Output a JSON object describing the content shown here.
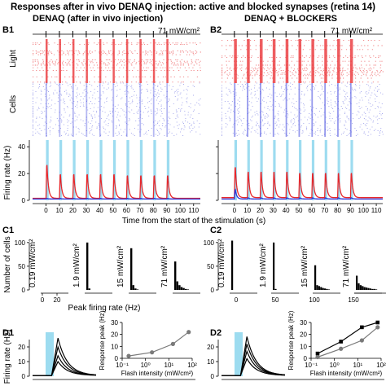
{
  "figure": {
    "title": "Responses after in vivo DENAQ injection: active and blocked synapses (retina 14)",
    "left_heading": "DENAQ (after in vivo injection)",
    "right_heading": "DENAQ + BLOCKERS",
    "row_labels": {
      "light": "Light",
      "cells": "Cells"
    },
    "panels": {
      "b1": "B1",
      "b2": "B2",
      "c1": "C1",
      "c2": "C2",
      "d1": "D1",
      "d2": "D2"
    },
    "intensity_label": "71 mW/cm²",
    "colors": {
      "red": "#e8272b",
      "red_light": "#f07a7c",
      "blue": "#2b33d9",
      "blue_light": "#8a8ee8",
      "cyan": "#9ddcf0",
      "grey": "#7a7a7a"
    }
  },
  "chart_data": [
    {
      "id": "b1-rate",
      "type": "line",
      "ylabel": "Firing rate (Hz)",
      "xlabel": "Time from the start of the stimulation (s)",
      "x_ticks": [
        0,
        10,
        20,
        30,
        40,
        50,
        60,
        70,
        80,
        90,
        100,
        110
      ],
      "y_ticks": [
        0,
        20,
        40
      ],
      "xlim": [
        -10,
        115
      ],
      "ylim": [
        0,
        45
      ],
      "stimulus_onsets": [
        0,
        10,
        20,
        30,
        40,
        50,
        60,
        70,
        80,
        90
      ],
      "series": [
        {
          "color": "red",
          "peaks": [
            30,
            22,
            22,
            22,
            22,
            22,
            21,
            21,
            21,
            21
          ],
          "baseline": 1.5
        },
        {
          "color": "blue",
          "peaks": [
            1.5,
            1.5,
            1.5,
            1.5,
            1.5,
            1.5,
            1.5,
            1.5,
            1.5,
            1.5
          ],
          "baseline": 1
        }
      ]
    },
    {
      "id": "b2-rate",
      "type": "line",
      "x_ticks": [
        0,
        10,
        20,
        30,
        40,
        50,
        60,
        70,
        80,
        90,
        100,
        110
      ],
      "y_ticks": [
        0,
        20,
        40
      ],
      "xlim": [
        -10,
        115
      ],
      "ylim": [
        0,
        45
      ],
      "stimulus_onsets": [
        0,
        10,
        20,
        30,
        40,
        50,
        60,
        70,
        80,
        90
      ],
      "series": [
        {
          "color": "red",
          "peaks": [
            28,
            24,
            24,
            24,
            24,
            23,
            23,
            23,
            23,
            23
          ],
          "baseline": 2
        },
        {
          "color": "blue",
          "peaks": [
            9,
            2,
            2,
            2,
            2,
            2,
            2,
            2,
            2,
            2
          ],
          "baseline": 1
        }
      ]
    },
    {
      "id": "c1",
      "type": "bar",
      "ylabel": "Number of cells",
      "xlabel": "Peak firing rate (Hz)",
      "y_ticks": [
        0,
        50,
        100
      ],
      "ylim": [
        0,
        110
      ],
      "subplots": [
        {
          "intensity": "0.19 mW/cm²",
          "x_ticks": [
            0,
            20
          ],
          "xlim": [
            0,
            30
          ],
          "values": [
            0,
            0,
            0,
            0,
            0,
            0
          ]
        },
        {
          "intensity": "1.9 mW/cm²",
          "x_ticks": [],
          "xlim": [
            0,
            30
          ],
          "values": [
            100,
            3,
            0,
            0,
            0,
            0
          ]
        },
        {
          "intensity": "15 mW/cm²",
          "x_ticks": [],
          "xlim": [
            0,
            30
          ],
          "values": [
            88,
            10,
            3,
            1,
            0,
            0
          ]
        },
        {
          "intensity": "71 mW/cm²",
          "x_ticks": [],
          "xlim": [
            0,
            30
          ],
          "values": [
            60,
            18,
            10,
            6,
            4,
            2,
            1
          ]
        }
      ]
    },
    {
      "id": "c2",
      "type": "bar",
      "x_ticks": [
        0,
        50,
        100,
        150
      ],
      "y_ticks": [
        0,
        50,
        100
      ],
      "ylim": [
        0,
        110
      ],
      "subplots": [
        {
          "intensity": "0.19 mW/cm²",
          "values": [
            104,
            0,
            0
          ]
        },
        {
          "intensity": "1.9 mW/cm²",
          "values": [
            100,
            2,
            0
          ]
        },
        {
          "intensity": "15 mW/cm²",
          "values": [
            52,
            10,
            8,
            6,
            4,
            3,
            2,
            1
          ]
        },
        {
          "intensity": "71 mW/cm²",
          "values": [
            30,
            14,
            10,
            8,
            6,
            5,
            4,
            3,
            2,
            2,
            1
          ]
        }
      ]
    },
    {
      "id": "d1",
      "type": "line",
      "ylabel": "Firing rate (Hz)",
      "y_ticks": [
        0,
        10,
        20
      ],
      "ylim": [
        0,
        30
      ],
      "traces_peaks": [
        26,
        20,
        14,
        10
      ],
      "inset": {
        "ylabel": "Response peak (Hz)",
        "xlabel": "Flash intensity (mW/cm²)",
        "x_ticks": [
          "10⁻¹",
          "10⁰",
          "10¹",
          "10²"
        ],
        "y_ticks": [
          0,
          10,
          20,
          30
        ],
        "ylim": [
          0,
          30
        ],
        "log_x": true,
        "series": [
          {
            "color": "grey",
            "x": [
              0.19,
              1.9,
              15,
              71
            ],
            "y": [
              2,
              5,
              12,
              22
            ]
          }
        ]
      }
    },
    {
      "id": "d2",
      "type": "line",
      "y_ticks": [
        0,
        10,
        20
      ],
      "ylim": [
        0,
        30
      ],
      "traces_peaks": [
        27,
        22,
        17,
        12
      ],
      "inset": {
        "ylabel": "Response peak (Hz)",
        "xlabel": "Flash intensity (mW/cm²)",
        "x_ticks": [
          "10⁻¹",
          "10⁰",
          "10¹",
          "10²"
        ],
        "y_ticks": [
          0,
          10,
          20,
          30
        ],
        "ylim": [
          0,
          30
        ],
        "log_x": true,
        "series": [
          {
            "color": "black",
            "x": [
              0.19,
              1.9,
              15,
              71
            ],
            "y": [
              4,
              14,
              26,
              30
            ]
          },
          {
            "color": "grey",
            "x": [
              0.19,
              1.9,
              15,
              71
            ],
            "y": [
              1,
              8,
              15,
              26
            ]
          }
        ]
      }
    }
  ]
}
